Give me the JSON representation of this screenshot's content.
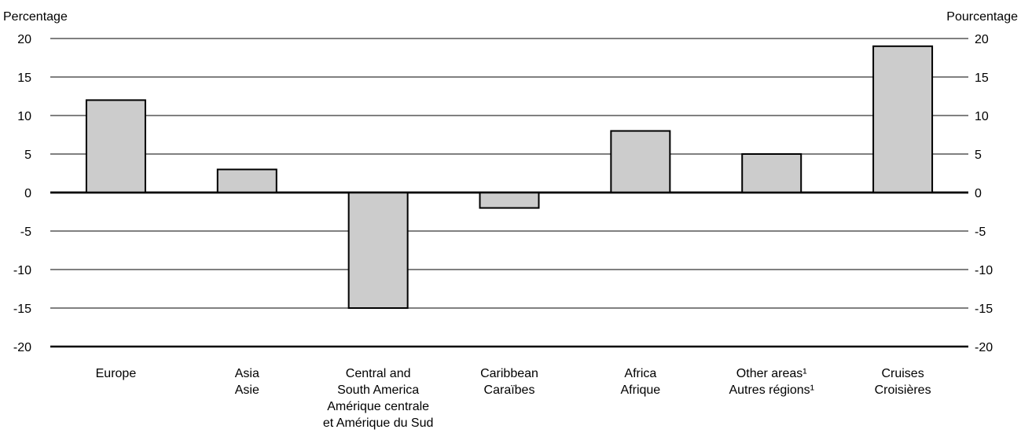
{
  "chart_data": {
    "type": "bar",
    "ylabel_left": "Percentage",
    "ylabel_right": "Pourcentage",
    "ylim": [
      -20,
      20
    ],
    "yticks": [
      "20",
      "15",
      "10",
      "5",
      "0",
      "-5",
      "-10",
      "-15",
      "-20"
    ],
    "grid": true,
    "categories": [
      {
        "lines": [
          "Europe"
        ]
      },
      {
        "lines": [
          "Asia",
          "Asie"
        ]
      },
      {
        "lines": [
          "Central and",
          "South America",
          "Amérique centrale",
          "et Amérique du Sud"
        ]
      },
      {
        "lines": [
          "Caribbean",
          "Caraïbes"
        ]
      },
      {
        "lines": [
          "Africa",
          "Afrique"
        ]
      },
      {
        "lines": [
          "Other areas¹",
          "Autres régions¹"
        ]
      },
      {
        "lines": [
          "Cruises",
          "Croisières"
        ]
      }
    ],
    "values": [
      12,
      3,
      -15,
      -2,
      8,
      5,
      19
    ],
    "bar_color": "#cccccc",
    "bar_stroke": "#000000"
  }
}
